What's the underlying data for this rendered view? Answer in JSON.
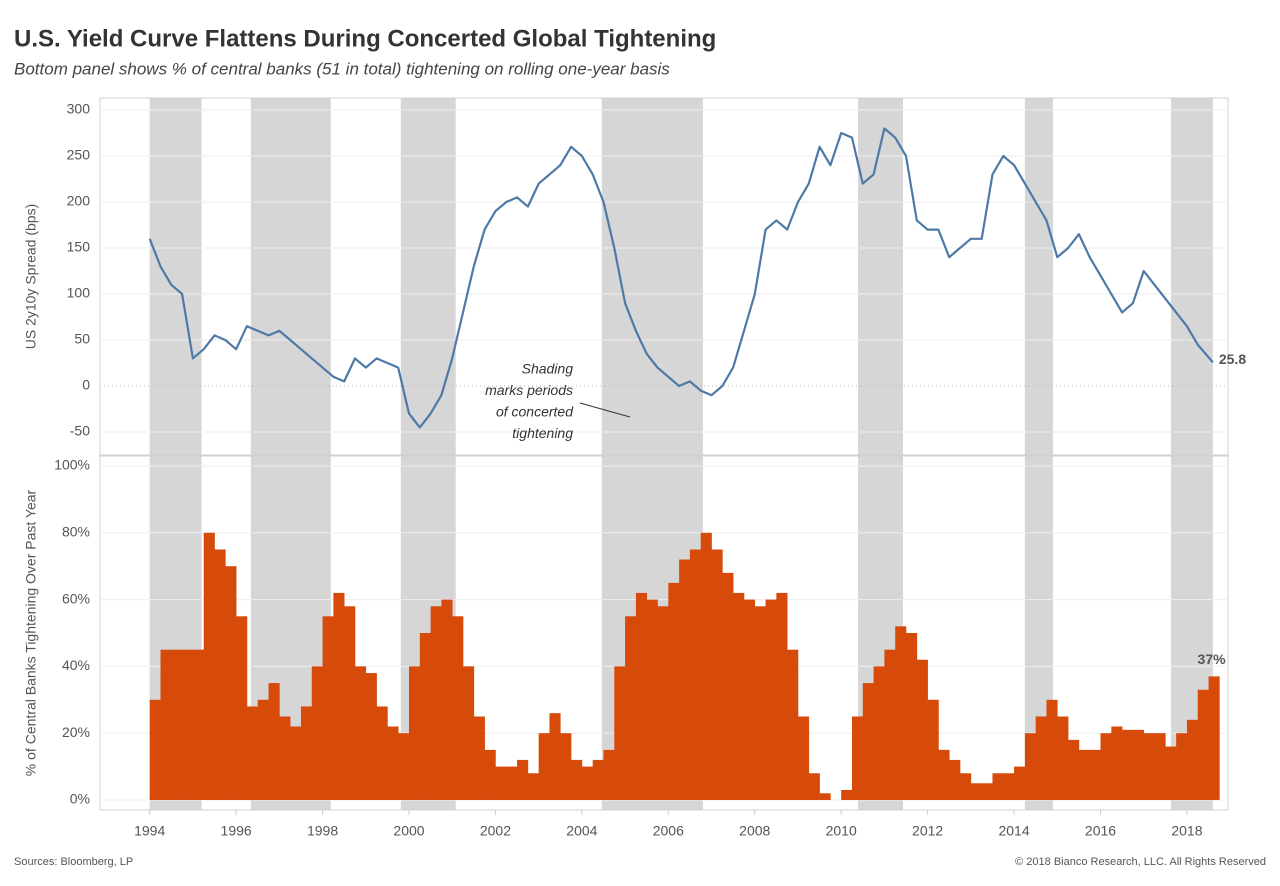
{
  "title": "U.S. Yield Curve Flattens During Concerted Global Tightening",
  "subtitle": "Bottom panel shows % of central banks (51 in total) tightening on rolling one-year basis",
  "sources": "Sources: Bloomberg, LP",
  "copyright": "© 2018 Bianco Research, LLC. All Rights Reserved",
  "chart_data": [
    {
      "type": "line",
      "y_label": "US 2y10y Spread (bps)",
      "xlim": [
        1992.85,
        2018.95
      ],
      "ylim": [
        -75,
        313
      ],
      "yticks": [
        -50,
        0,
        50,
        100,
        150,
        200,
        250,
        300
      ],
      "grid": true,
      "shading": [
        [
          1994.0,
          1995.2
        ],
        [
          1996.34,
          1998.19
        ],
        [
          1999.81,
          2001.08
        ],
        [
          2004.46,
          2006.8
        ],
        [
          2010.39,
          2011.43
        ],
        [
          2014.25,
          2014.9
        ],
        [
          2017.63,
          2018.6
        ]
      ],
      "annotation": [
        "Shading",
        "marks periods",
        "of concerted",
        "tightening"
      ],
      "series": [
        {
          "color": "#4e79a7",
          "x": [
            1994.0,
            1994.25,
            1994.5,
            1994.75,
            1995.0,
            1995.25,
            1995.5,
            1995.75,
            1996.0,
            1996.25,
            1996.5,
            1996.75,
            1997.0,
            1997.25,
            1997.5,
            1997.75,
            1998.0,
            1998.25,
            1998.5,
            1998.75,
            1999.0,
            1999.25,
            1999.5,
            1999.75,
            2000.0,
            2000.25,
            2000.5,
            2000.75,
            2001.0,
            2001.25,
            2001.5,
            2001.75,
            2002.0,
            2002.25,
            2002.5,
            2002.75,
            2003.0,
            2003.25,
            2003.5,
            2003.75,
            2004.0,
            2004.25,
            2004.5,
            2004.75,
            2005.0,
            2005.25,
            2005.5,
            2005.75,
            2006.0,
            2006.25,
            2006.5,
            2006.75,
            2007.0,
            2007.25,
            2007.5,
            2007.75,
            2008.0,
            2008.25,
            2008.5,
            2008.75,
            2009.0,
            2009.25,
            2009.5,
            2009.75,
            2010.0,
            2010.25,
            2010.5,
            2010.75,
            2011.0,
            2011.25,
            2011.5,
            2011.75,
            2012.0,
            2012.25,
            2012.5,
            2012.75,
            2013.0,
            2013.25,
            2013.5,
            2013.75,
            2014.0,
            2014.25,
            2014.5,
            2014.75,
            2015.0,
            2015.25,
            2015.5,
            2015.75,
            2016.0,
            2016.25,
            2016.5,
            2016.75,
            2017.0,
            2017.25,
            2017.5,
            2017.75,
            2018.0,
            2018.25,
            2018.6
          ],
          "values": [
            160,
            130,
            110,
            100,
            30,
            40,
            55,
            50,
            40,
            65,
            60,
            55,
            60,
            50,
            40,
            30,
            20,
            10,
            5,
            30,
            20,
            30,
            25,
            20,
            -30,
            -45,
            -30,
            -10,
            30,
            80,
            130,
            170,
            190,
            200,
            205,
            195,
            220,
            230,
            240,
            260,
            250,
            230,
            200,
            150,
            90,
            60,
            35,
            20,
            10,
            0,
            5,
            -5,
            -10,
            0,
            20,
            60,
            100,
            170,
            180,
            170,
            200,
            220,
            260,
            240,
            275,
            270,
            220,
            230,
            280,
            270,
            250,
            180,
            170,
            170,
            140,
            150,
            160,
            160,
            230,
            250,
            240,
            220,
            200,
            180,
            140,
            150,
            165,
            140,
            120,
            100,
            80,
            90,
            125,
            110,
            95,
            80,
            65,
            45,
            25.8
          ]
        }
      ]
    },
    {
      "type": "bar",
      "y_label": "% of Central Banks Tightening Over Past Year",
      "xlim": [
        1992.85,
        2018.95
      ],
      "ylim": [
        -3,
        103
      ],
      "yticks": [
        {
          "value": 0,
          "label": "0%"
        },
        {
          "value": 20,
          "label": "20%"
        },
        {
          "value": 40,
          "label": "40%"
        },
        {
          "value": 60,
          "label": "60%"
        },
        {
          "value": 80,
          "label": "80%"
        },
        {
          "value": 100,
          "label": "100%"
        }
      ],
      "xticks": [
        1994,
        1996,
        1998,
        2000,
        2002,
        2004,
        2006,
        2008,
        2010,
        2012,
        2014,
        2016,
        2018
      ],
      "grid": true,
      "color": "#d64a0a",
      "x": [
        1994.0,
        1994.25,
        1994.5,
        1994.75,
        1995.0,
        1995.25,
        1995.5,
        1995.75,
        1996.0,
        1996.25,
        1996.5,
        1996.75,
        1997.0,
        1997.25,
        1997.5,
        1997.75,
        1998.0,
        1998.25,
        1998.5,
        1998.75,
        1999.0,
        1999.25,
        1999.5,
        1999.75,
        2000.0,
        2000.25,
        2000.5,
        2000.75,
        2001.0,
        2001.25,
        2001.5,
        2001.75,
        2002.0,
        2002.25,
        2002.5,
        2002.75,
        2003.0,
        2003.25,
        2003.5,
        2003.75,
        2004.0,
        2004.25,
        2004.5,
        2004.75,
        2005.0,
        2005.25,
        2005.5,
        2005.75,
        2006.0,
        2006.25,
        2006.5,
        2006.75,
        2007.0,
        2007.25,
        2007.5,
        2007.75,
        2008.0,
        2008.25,
        2008.5,
        2008.75,
        2009.0,
        2009.25,
        2009.5,
        2009.75,
        2010.0,
        2010.25,
        2010.5,
        2010.75,
        2011.0,
        2011.25,
        2011.5,
        2011.75,
        2012.0,
        2012.25,
        2012.5,
        2012.75,
        2013.0,
        2013.25,
        2013.5,
        2013.75,
        2014.0,
        2014.25,
        2014.5,
        2014.75,
        2015.0,
        2015.25,
        2015.5,
        2015.75,
        2016.0,
        2016.25,
        2016.5,
        2016.75,
        2017.0,
        2017.25,
        2017.5,
        2017.75,
        2018.0,
        2018.25,
        2018.5
      ],
      "values": [
        30,
        45,
        45,
        45,
        45,
        80,
        75,
        70,
        55,
        28,
        30,
        35,
        25,
        22,
        28,
        40,
        55,
        62,
        58,
        40,
        38,
        28,
        22,
        20,
        40,
        50,
        58,
        60,
        55,
        40,
        25,
        15,
        10,
        10,
        12,
        8,
        20,
        26,
        20,
        12,
        10,
        12,
        15,
        40,
        55,
        62,
        60,
        58,
        65,
        72,
        75,
        80,
        75,
        68,
        62,
        60,
        58,
        60,
        62,
        45,
        25,
        8,
        2,
        0,
        3,
        25,
        35,
        40,
        45,
        52,
        50,
        42,
        30,
        15,
        12,
        8,
        5,
        5,
        8,
        8,
        10,
        20,
        25,
        30,
        25,
        18,
        15,
        15,
        20,
        22,
        21,
        21,
        20,
        20,
        16,
        20,
        24,
        33,
        37
      ],
      "value_labels": {
        "98": "37%"
      }
    }
  ]
}
